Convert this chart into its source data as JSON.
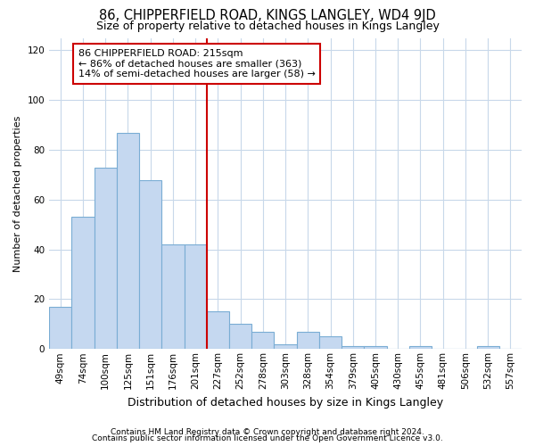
{
  "title": "86, CHIPPERFIELD ROAD, KINGS LANGLEY, WD4 9JD",
  "subtitle": "Size of property relative to detached houses in Kings Langley",
  "xlabel": "Distribution of detached houses by size in Kings Langley",
  "ylabel": "Number of detached properties",
  "footer_line1": "Contains HM Land Registry data © Crown copyright and database right 2024.",
  "footer_line2": "Contains public sector information licensed under the Open Government Licence v3.0.",
  "categories": [
    "49sqm",
    "74sqm",
    "100sqm",
    "125sqm",
    "151sqm",
    "176sqm",
    "201sqm",
    "227sqm",
    "252sqm",
    "278sqm",
    "303sqm",
    "328sqm",
    "354sqm",
    "379sqm",
    "405sqm",
    "430sqm",
    "455sqm",
    "481sqm",
    "506sqm",
    "532sqm",
    "557sqm"
  ],
  "bar_values": [
    17,
    53,
    73,
    87,
    68,
    42,
    42,
    15,
    10,
    7,
    2,
    7,
    5,
    1,
    1,
    0,
    1,
    0,
    0,
    1,
    0
  ],
  "bar_color": "#c5d8f0",
  "bar_edge_color": "#7aadd4",
  "property_line_x": 6.5,
  "property_line_color": "#cc0000",
  "annotation_text": "86 CHIPPERFIELD ROAD: 215sqm\n← 86% of detached houses are smaller (363)\n14% of semi-detached houses are larger (58) →",
  "annotation_box_color": "#ffffff",
  "annotation_box_edge": "#cc0000",
  "ylim": [
    0,
    125
  ],
  "yticks": [
    0,
    20,
    40,
    60,
    80,
    100,
    120
  ],
  "bg_color": "#ffffff",
  "plot_bg_color": "#ffffff",
  "grid_color": "#c8d8ea",
  "title_fontsize": 10.5,
  "subtitle_fontsize": 9,
  "xlabel_fontsize": 9,
  "ylabel_fontsize": 8,
  "tick_fontsize": 7.5,
  "footer_fontsize": 6.5
}
